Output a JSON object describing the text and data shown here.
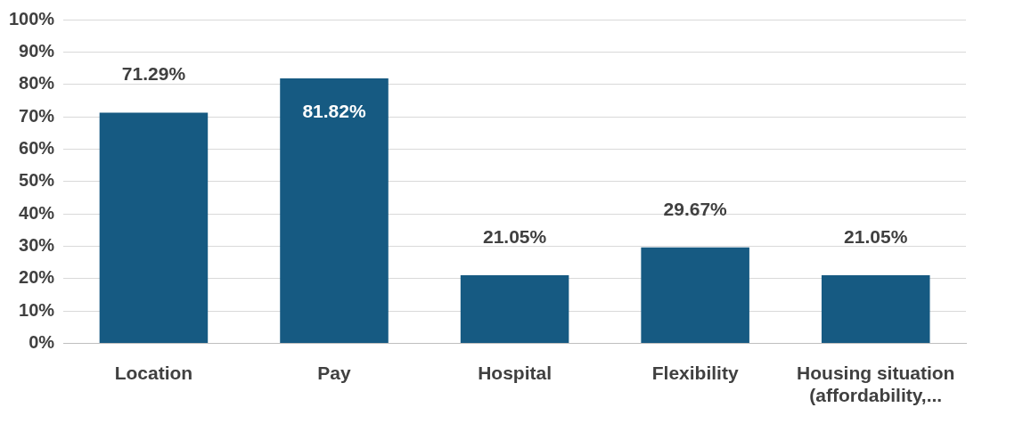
{
  "chart_data": {
    "type": "bar",
    "categories": [
      "Location",
      "Pay",
      "Hospital",
      "Flexibility",
      "Housing situation (affordability,..."
    ],
    "values": [
      71.29,
      81.82,
      21.05,
      29.67,
      21.05
    ],
    "color": "#165a82",
    "value_labels": [
      "71.29%",
      "81.82%",
      "21.05%",
      "29.67%",
      "21.05%"
    ],
    "ylim": [
      0,
      100
    ],
    "yticks": [
      {
        "value": 0,
        "label": "0%"
      },
      {
        "value": 10,
        "label": "10%"
      },
      {
        "value": 20,
        "label": "20%"
      },
      {
        "value": 30,
        "label": "30%"
      },
      {
        "value": 40,
        "label": "40%"
      },
      {
        "value": 50,
        "label": "50%"
      },
      {
        "value": 60,
        "label": "60%"
      },
      {
        "value": 70,
        "label": "70%"
      },
      {
        "value": 80,
        "label": "80%"
      },
      {
        "value": 90,
        "label": "90%"
      },
      {
        "value": 100,
        "label": "100%"
      }
    ],
    "grid": "y",
    "legend": false
  }
}
